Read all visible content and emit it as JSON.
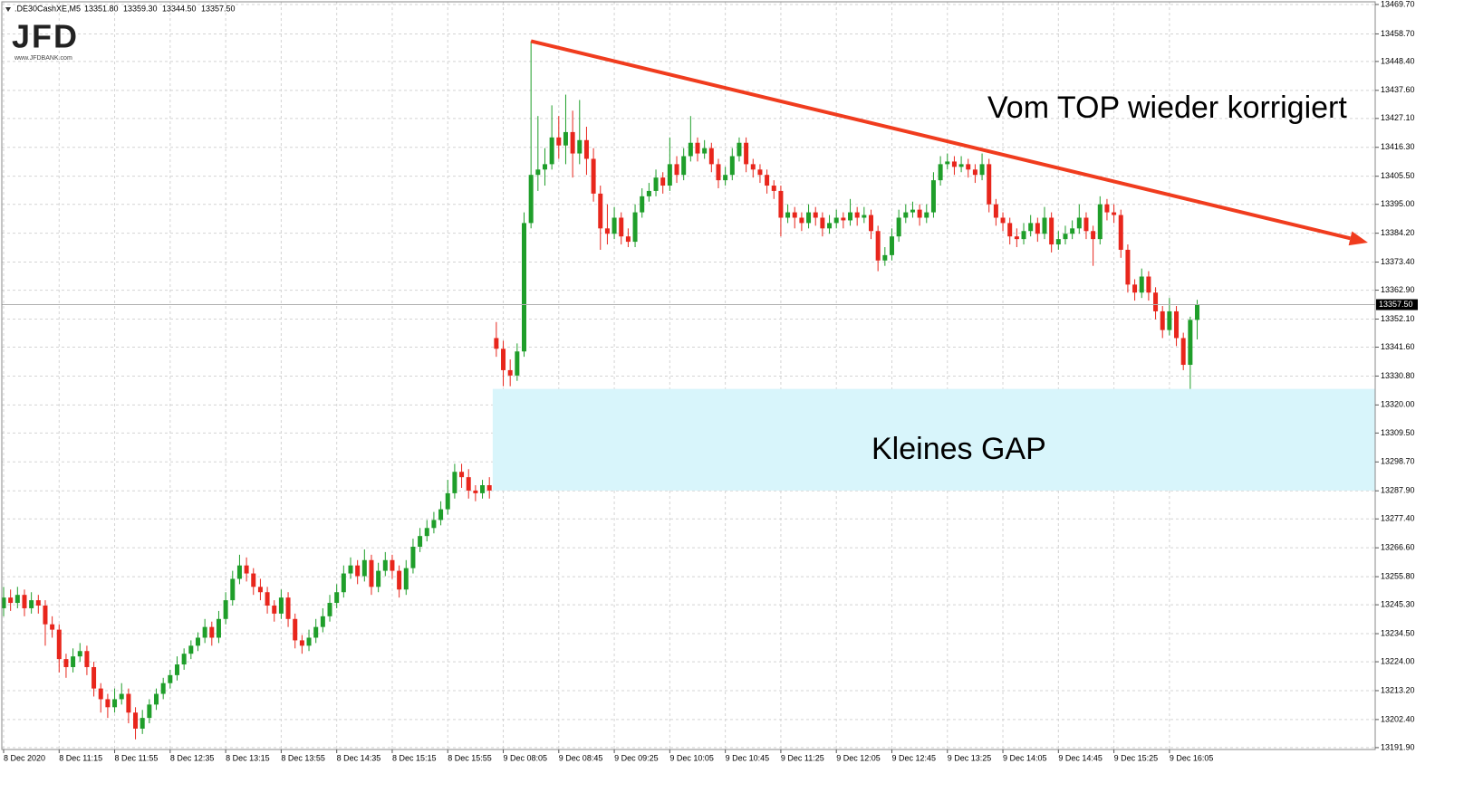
{
  "chart_data": {
    "type": "candlestick",
    "symbol": ".DE30CashXE,M5",
    "header_labels": [
      "13351.80",
      "13359.30",
      "13344.50",
      "13357.50"
    ],
    "logo": "JFD",
    "logo_url": "www.JFDBANK.com",
    "categories": [
      "8 Dec 2020",
      null,
      null,
      null,
      null,
      null,
      null,
      null,
      "8 Dec 11:15",
      null,
      null,
      null,
      null,
      null,
      null,
      null,
      "8 Dec 11:55",
      null,
      null,
      null,
      null,
      null,
      null,
      null,
      "8 Dec 12:35",
      null,
      null,
      null,
      null,
      null,
      null,
      null,
      "8 Dec 13:15",
      null,
      null,
      null,
      null,
      null,
      null,
      null,
      "8 Dec 13:55",
      null,
      null,
      null,
      null,
      null,
      null,
      null,
      "8 Dec 14:35",
      null,
      null,
      null,
      null,
      null,
      null,
      null,
      "8 Dec 15:15",
      null,
      null,
      null,
      null,
      null,
      null,
      null,
      "8 Dec 15:55",
      null,
      null,
      null,
      null,
      null,
      null,
      null,
      "9 Dec 08:05",
      null,
      null,
      null,
      null,
      null,
      null,
      null,
      "9 Dec 08:45",
      null,
      null,
      null,
      null,
      null,
      null,
      null,
      "9 Dec 09:25",
      null,
      null,
      null,
      null,
      null,
      null,
      null,
      "9 Dec 10:05",
      null,
      null,
      null,
      null,
      null,
      null,
      null,
      "9 Dec 10:45",
      null,
      null,
      null,
      null,
      null,
      null,
      null,
      "9 Dec 11:25",
      null,
      null,
      null,
      null,
      null,
      null,
      null,
      "9 Dec 12:05",
      null,
      null,
      null,
      null,
      null,
      null,
      null,
      "9 Dec 12:45",
      null,
      null,
      null,
      null,
      null,
      null,
      null,
      "9 Dec 13:25",
      null,
      null,
      null,
      null,
      null,
      null,
      null,
      "9 Dec 14:05",
      null,
      null,
      null,
      null,
      null,
      null,
      null,
      "9 Dec 14:45",
      null,
      null,
      null,
      null,
      null,
      null,
      null,
      "9 Dec 15:25",
      null,
      null,
      null,
      null,
      null,
      null,
      null,
      "9 Dec 16:05",
      null,
      null,
      null,
      null
    ],
    "ohlc": [
      [
        13244,
        13252,
        13241,
        13248
      ],
      [
        13248,
        13251,
        13243,
        13246
      ],
      [
        13246,
        13252,
        13244,
        13249
      ],
      [
        13249,
        13251,
        13241,
        13244
      ],
      [
        13244,
        13250,
        13242,
        13247
      ],
      [
        13247,
        13249,
        13242,
        13245
      ],
      [
        13245,
        13247,
        13230,
        13238
      ],
      [
        13238,
        13241,
        13233,
        13236
      ],
      [
        13236,
        13238,
        13220,
        13225
      ],
      [
        13225,
        13227,
        13218,
        13222
      ],
      [
        13222,
        13229,
        13220,
        13226
      ],
      [
        13226,
        13231,
        13224,
        13228
      ],
      [
        13228,
        13230,
        13219,
        13222
      ],
      [
        13222,
        13224,
        13211,
        13214
      ],
      [
        13214,
        13216,
        13205,
        13210
      ],
      [
        13210,
        13212,
        13203,
        13207
      ],
      [
        13207,
        13214,
        13205,
        13210
      ],
      [
        13210,
        13216,
        13208,
        13212
      ],
      [
        13212,
        13214,
        13201,
        13205
      ],
      [
        13205,
        13207,
        13195,
        13199
      ],
      [
        13199,
        13206,
        13197,
        13203
      ],
      [
        13203,
        13210,
        13201,
        13208
      ],
      [
        13208,
        13214,
        13206,
        13212
      ],
      [
        13212,
        13218,
        13210,
        13216
      ],
      [
        13216,
        13221,
        13214,
        13219
      ],
      [
        13219,
        13226,
        13217,
        13223
      ],
      [
        13223,
        13229,
        13221,
        13227
      ],
      [
        13227,
        13232,
        13225,
        13230
      ],
      [
        13230,
        13235,
        13228,
        13233
      ],
      [
        13233,
        13240,
        13231,
        13237
      ],
      [
        13237,
        13239,
        13230,
        13233
      ],
      [
        13233,
        13243,
        13231,
        13240
      ],
      [
        13240,
        13250,
        13238,
        13247
      ],
      [
        13247,
        13258,
        13245,
        13255
      ],
      [
        13255,
        13264,
        13253,
        13260
      ],
      [
        13260,
        13263,
        13254,
        13257
      ],
      [
        13257,
        13259,
        13249,
        13252
      ],
      [
        13252,
        13255,
        13247,
        13250
      ],
      [
        13250,
        13252,
        13242,
        13245
      ],
      [
        13245,
        13247,
        13239,
        13242
      ],
      [
        13242,
        13251,
        13240,
        13248
      ],
      [
        13248,
        13250,
        13237,
        13240
      ],
      [
        13240,
        13242,
        13229,
        13232
      ],
      [
        13232,
        13234,
        13227,
        13230
      ],
      [
        13230,
        13236,
        13228,
        13233
      ],
      [
        13233,
        13240,
        13231,
        13237
      ],
      [
        13237,
        13244,
        13235,
        13241
      ],
      [
        13241,
        13249,
        13239,
        13246
      ],
      [
        13246,
        13253,
        13244,
        13250
      ],
      [
        13250,
        13260,
        13248,
        13257
      ],
      [
        13257,
        13263,
        13255,
        13260
      ],
      [
        13260,
        13262,
        13253,
        13256
      ],
      [
        13256,
        13266,
        13254,
        13262
      ],
      [
        13262,
        13264,
        13249,
        13252
      ],
      [
        13252,
        13261,
        13250,
        13258
      ],
      [
        13258,
        13265,
        13256,
        13262
      ],
      [
        13262,
        13264,
        13255,
        13258
      ],
      [
        13258,
        13260,
        13248,
        13251
      ],
      [
        13251,
        13262,
        13249,
        13259
      ],
      [
        13259,
        13270,
        13257,
        13267
      ],
      [
        13267,
        13274,
        13265,
        13271
      ],
      [
        13271,
        13277,
        13269,
        13274
      ],
      [
        13274,
        13280,
        13272,
        13277
      ],
      [
        13277,
        13284,
        13275,
        13281
      ],
      [
        13281,
        13292,
        13279,
        13287
      ],
      [
        13287,
        13298,
        13285,
        13295
      ],
      [
        13295,
        13298,
        13289,
        13293
      ],
      [
        13293,
        13296,
        13285,
        13288
      ],
      [
        13288,
        13290,
        13284,
        13287
      ],
      [
        13287,
        13292,
        13285,
        13290
      ],
      [
        13290,
        13293,
        13285,
        13288
      ],
      [
        13345,
        13351,
        13338,
        13341
      ],
      [
        13341,
        13344,
        13327,
        13333
      ],
      [
        13333,
        13337,
        13327,
        13331
      ],
      [
        13331,
        13343,
        13329,
        13340
      ],
      [
        13340,
        13392,
        13338,
        13388
      ],
      [
        13388,
        13456,
        13386,
        13406
      ],
      [
        13406,
        13428,
        13400,
        13408
      ],
      [
        13408,
        13416,
        13402,
        13410
      ],
      [
        13410,
        13432,
        13408,
        13420
      ],
      [
        13420,
        13428,
        13412,
        13417
      ],
      [
        13417,
        13436,
        13410,
        13422
      ],
      [
        13422,
        13430,
        13405,
        13414
      ],
      [
        13414,
        13434,
        13410,
        13419
      ],
      [
        13419,
        13424,
        13406,
        13412
      ],
      [
        13412,
        13416,
        13396,
        13399
      ],
      [
        13399,
        13402,
        13378,
        13386
      ],
      [
        13386,
        13395,
        13380,
        13384
      ],
      [
        13384,
        13394,
        13382,
        13390
      ],
      [
        13390,
        13392,
        13380,
        13383
      ],
      [
        13383,
        13386,
        13379,
        13381
      ],
      [
        13381,
        13395,
        13379,
        13392
      ],
      [
        13392,
        13401,
        13390,
        13398
      ],
      [
        13398,
        13403,
        13396,
        13400
      ],
      [
        13400,
        13408,
        13398,
        13405
      ],
      [
        13405,
        13407,
        13399,
        13402
      ],
      [
        13402,
        13420,
        13400,
        13410
      ],
      [
        13410,
        13413,
        13403,
        13406
      ],
      [
        13406,
        13416,
        13404,
        13413
      ],
      [
        13413,
        13428,
        13411,
        13418
      ],
      [
        13418,
        13420,
        13411,
        13414
      ],
      [
        13414,
        13419,
        13412,
        13416
      ],
      [
        13416,
        13418,
        13407,
        13410
      ],
      [
        13410,
        13412,
        13401,
        13404
      ],
      [
        13404,
        13409,
        13402,
        13406
      ],
      [
        13406,
        13416,
        13404,
        13413
      ],
      [
        13413,
        13420,
        13411,
        13418
      ],
      [
        13418,
        13420,
        13407,
        13410
      ],
      [
        13410,
        13412,
        13405,
        13408
      ],
      [
        13408,
        13410,
        13403,
        13406
      ],
      [
        13406,
        13408,
        13399,
        13402
      ],
      [
        13402,
        13404,
        13397,
        13400
      ],
      [
        13400,
        13402,
        13383,
        13390
      ],
      [
        13390,
        13395,
        13388,
        13392
      ],
      [
        13392,
        13394,
        13386,
        13390
      ],
      [
        13390,
        13392,
        13385,
        13388
      ],
      [
        13388,
        13395,
        13386,
        13392
      ],
      [
        13392,
        13394,
        13387,
        13390
      ],
      [
        13390,
        13392,
        13383,
        13386
      ],
      [
        13386,
        13391,
        13384,
        13388
      ],
      [
        13388,
        13393,
        13386,
        13390
      ],
      [
        13390,
        13392,
        13386,
        13389
      ],
      [
        13389,
        13397,
        13387,
        13392
      ],
      [
        13392,
        13394,
        13387,
        13390
      ],
      [
        13390,
        13394,
        13388,
        13391
      ],
      [
        13391,
        13393,
        13382,
        13385
      ],
      [
        13385,
        13387,
        13370,
        13374
      ],
      [
        13374,
        13379,
        13372,
        13376
      ],
      [
        13376,
        13386,
        13374,
        13383
      ],
      [
        13383,
        13393,
        13381,
        13390
      ],
      [
        13390,
        13395,
        13388,
        13392
      ],
      [
        13392,
        13396,
        13390,
        13393
      ],
      [
        13393,
        13395,
        13387,
        13390
      ],
      [
        13390,
        13395,
        13388,
        13392
      ],
      [
        13392,
        13407,
        13390,
        13404
      ],
      [
        13404,
        13413,
        13402,
        13410
      ],
      [
        13410,
        13414,
        13408,
        13411
      ],
      [
        13411,
        13413,
        13406,
        13409
      ],
      [
        13409,
        13413,
        13407,
        13410
      ],
      [
        13410,
        13412,
        13405,
        13408
      ],
      [
        13408,
        13410,
        13403,
        13406
      ],
      [
        13406,
        13414,
        13404,
        13410
      ],
      [
        13410,
        13412,
        13392,
        13395
      ],
      [
        13395,
        13397,
        13387,
        13390
      ],
      [
        13390,
        13392,
        13385,
        13388
      ],
      [
        13388,
        13390,
        13380,
        13383
      ],
      [
        13383,
        13386,
        13379,
        13382
      ],
      [
        13382,
        13388,
        13380,
        13385
      ],
      [
        13385,
        13391,
        13383,
        13388
      ],
      [
        13388,
        13390,
        13381,
        13384
      ],
      [
        13384,
        13394,
        13382,
        13390
      ],
      [
        13390,
        13392,
        13377,
        13380
      ],
      [
        13380,
        13385,
        13378,
        13382
      ],
      [
        13382,
        13387,
        13380,
        13384
      ],
      [
        13384,
        13389,
        13382,
        13386
      ],
      [
        13386,
        13395,
        13384,
        13390
      ],
      [
        13390,
        13392,
        13382,
        13385
      ],
      [
        13385,
        13387,
        13372,
        13382
      ],
      [
        13382,
        13398,
        13380,
        13395
      ],
      [
        13395,
        13397,
        13389,
        13392
      ],
      [
        13392,
        13395,
        13388,
        13391
      ],
      [
        13391,
        13393,
        13375,
        13378
      ],
      [
        13378,
        13380,
        13362,
        13365
      ],
      [
        13365,
        13367,
        13359,
        13362
      ],
      [
        13362,
        13371,
        13360,
        13368
      ],
      [
        13368,
        13370,
        13359,
        13362
      ],
      [
        13362,
        13364,
        13352,
        13355
      ],
      [
        13355,
        13357,
        13345,
        13348
      ],
      [
        13348,
        13360,
        13346,
        13355
      ],
      [
        13355,
        13357,
        13342,
        13345
      ],
      [
        13345,
        13347,
        13333,
        13335
      ],
      [
        13335,
        13353,
        13326,
        13351.8
      ],
      [
        13351.8,
        13359.3,
        13344.5,
        13357.5
      ]
    ],
    "up_color": "#1f9e2a",
    "down_color": "#e8261c",
    "ylim": [
      13191.2,
      13470.7
    ],
    "yticks": [
      {
        "value": 13469.7,
        "label": "13469.70"
      },
      {
        "value": 13458.7,
        "label": "13458.70"
      },
      {
        "value": 13448.4,
        "label": "13448.40"
      },
      {
        "value": 13437.6,
        "label": "13437.60"
      },
      {
        "value": 13427.1,
        "label": "13427.10"
      },
      {
        "value": 13416.3,
        "label": "13416.30"
      },
      {
        "value": 13405.5,
        "label": "13405.50"
      },
      {
        "value": 13395,
        "label": "13395.00"
      },
      {
        "value": 13384.2,
        "label": "13384.20"
      },
      {
        "value": 13373.4,
        "label": "13373.40"
      },
      {
        "value": 13362.9,
        "label": "13362.90"
      },
      {
        "value": 13352.1,
        "label": "13352.10"
      },
      {
        "value": 13341.6,
        "label": "13341.60"
      },
      {
        "value": 13330.8,
        "label": "13330.80"
      },
      {
        "value": 13320,
        "label": "13320.00"
      },
      {
        "value": 13309.5,
        "label": "13309.50"
      },
      {
        "value": 13298.7,
        "label": "13298.70"
      },
      {
        "value": 13287.9,
        "label": "13287.90"
      },
      {
        "value": 13277.4,
        "label": "13277.40"
      },
      {
        "value": 13266.6,
        "label": "13266.60"
      },
      {
        "value": 13255.8,
        "label": "13255.80"
      },
      {
        "value": 13245.3,
        "label": "13245.30"
      },
      {
        "value": 13234.5,
        "label": "13234.50"
      },
      {
        "value": 13224,
        "label": "13224.00"
      },
      {
        "value": 13213.2,
        "label": "13213.20"
      },
      {
        "value": 13202.4,
        "label": "13202.40"
      },
      {
        "value": 13191.9,
        "label": "13191.90"
      }
    ],
    "grid": true,
    "current_price": {
      "value": 13357.5,
      "label": "13357.50"
    },
    "annotations": [
      {
        "text": "Vom TOP wieder korrigiert"
      },
      {
        "text": "Kleines GAP"
      }
    ],
    "trendline": {
      "x": [
        76,
        196.6
      ],
      "y": [
        13456,
        13380.7
      ],
      "color": "#f03c1e"
    },
    "gap_zone": {
      "start": 71,
      "from": 13288,
      "to": 13326,
      "color": "#d8f5fb"
    }
  }
}
